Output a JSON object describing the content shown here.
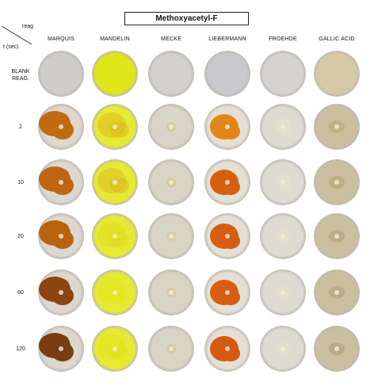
{
  "title": "Methoxyacetyl-F",
  "corner": {
    "reagent_label": "reag",
    "time_label": "t (sec)"
  },
  "reagents": [
    "MARQUIS",
    "MANDELIN",
    "MECKE",
    "LIEBERMANN",
    "FROEHDE",
    "GALLIC ACID"
  ],
  "rows": [
    "BLANK\nREAG.",
    "2",
    "10",
    "20",
    "60",
    "120"
  ],
  "colors": {
    "blank": [
      "#cfcdcb",
      "#dfe61a",
      "#d2d0cc",
      "#c9c9cd",
      "#d4d3d1",
      "#d7c8a8"
    ],
    "plate_bg": [
      "#dcd8cf",
      "#e6ea33",
      "#d8d5c6",
      "#e4e0d6",
      "#dedcd2",
      "#cbbf9f"
    ],
    "stain": [
      [
        "#c16a12",
        "#ddb418",
        "#d8c584",
        "#e3861a",
        "#ece8c8",
        "#b9a06c"
      ],
      [
        "#be6512",
        "#d8bb20",
        "#d6c17a",
        "#d7600f",
        "#e9e3c3",
        "#b39b6c"
      ],
      [
        "#b9630f",
        "#dfdc1e",
        "#d7c488",
        "#d55e10",
        "#e8e2c0",
        "#ad9870"
      ],
      [
        "#8c4410",
        "#e4e61f",
        "#d5c389",
        "#d75e10",
        "#e7e1c0",
        "#ab9770"
      ],
      [
        "#7a3d12",
        "#dfe31d",
        "#d5c286",
        "#d55a10",
        "#e7e1c0",
        "#a99672"
      ]
    ]
  }
}
